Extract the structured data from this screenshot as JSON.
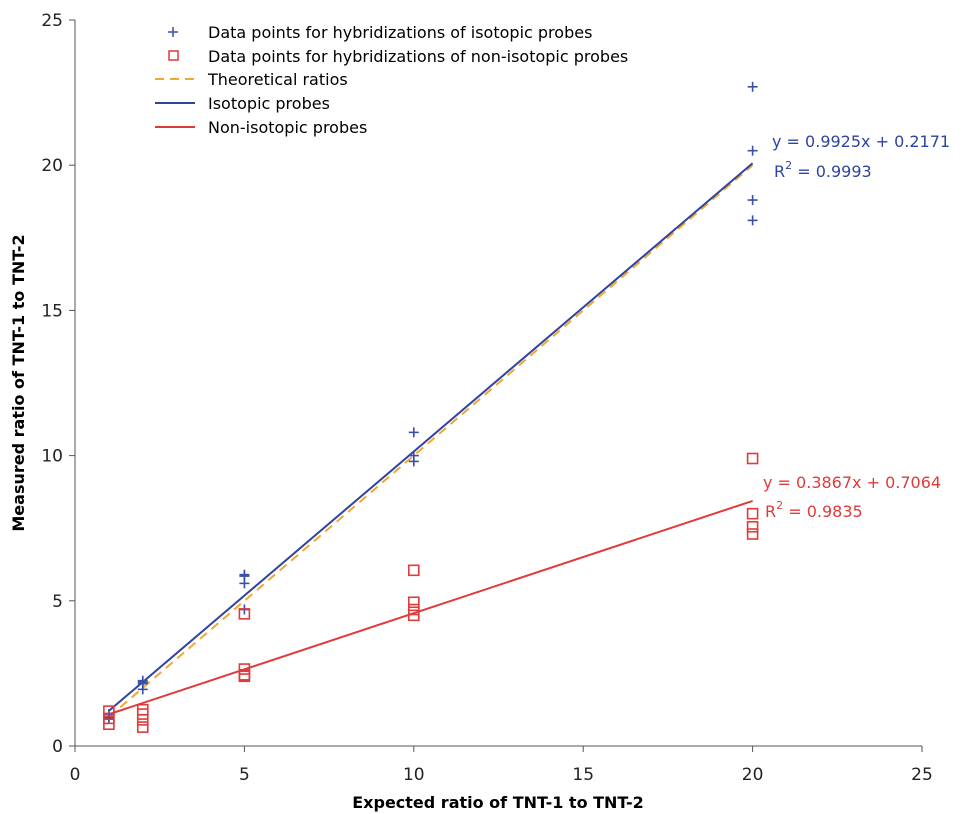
{
  "chart_data": {
    "type": "scatter",
    "xlabel": "Expected ratio of TNT-1 to TNT-2",
    "ylabel": "Measured ratio of TNT-1 to TNT-2",
    "xlim": [
      0,
      25
    ],
    "ylim": [
      0,
      25
    ],
    "xticks": [
      "0",
      "5",
      "10",
      "15",
      "20",
      "25"
    ],
    "yticks": [
      "0",
      "5",
      "10",
      "15",
      "20",
      "25"
    ],
    "grid": false,
    "legend_position": "top-left",
    "series": [
      {
        "name": "Data points for hybridizations of isotopic probes",
        "kind": "scatter",
        "marker": "plus",
        "color": "#3a4fa8",
        "points": [
          [
            1,
            1.0
          ],
          [
            1,
            0.95
          ],
          [
            1,
            1.1
          ],
          [
            2,
            2.2
          ],
          [
            2,
            2.25
          ],
          [
            2,
            2.15
          ],
          [
            2,
            1.95
          ],
          [
            5,
            5.9
          ],
          [
            5,
            5.85
          ],
          [
            5,
            5.6
          ],
          [
            5,
            4.7
          ],
          [
            10,
            10.8
          ],
          [
            10,
            10.0
          ],
          [
            10,
            9.8
          ],
          [
            20,
            22.7
          ],
          [
            20,
            20.5
          ],
          [
            20,
            18.8
          ],
          [
            20,
            18.1
          ]
        ]
      },
      {
        "name": "Data points for hybridizations of non-isotopic probes",
        "kind": "scatter",
        "marker": "square",
        "color": "#e03a3a",
        "points": [
          [
            1,
            1.2
          ],
          [
            1,
            0.95
          ],
          [
            1,
            0.75
          ],
          [
            2,
            1.25
          ],
          [
            2,
            1.1
          ],
          [
            2,
            0.9
          ],
          [
            2,
            0.65
          ],
          [
            5,
            4.55
          ],
          [
            5,
            2.65
          ],
          [
            5,
            2.45
          ],
          [
            5,
            2.4
          ],
          [
            10,
            6.05
          ],
          [
            10,
            4.95
          ],
          [
            10,
            4.7
          ],
          [
            10,
            4.5
          ],
          [
            20,
            9.9
          ],
          [
            20,
            8.0
          ],
          [
            20,
            7.55
          ],
          [
            20,
            7.3
          ]
        ]
      },
      {
        "name": "Theoretical ratios",
        "kind": "line",
        "style": "dashed",
        "color": "#f0a830",
        "points": [
          [
            1,
            1
          ],
          [
            20,
            20
          ]
        ]
      },
      {
        "name": "Isotopic probes",
        "kind": "line",
        "style": "solid",
        "color": "#2f43a0",
        "slope": 0.9925,
        "intercept": 0.2171,
        "x_range": [
          1,
          20
        ]
      },
      {
        "name": "Non-isotopic probes",
        "kind": "line",
        "style": "solid",
        "color": "#e03a3a",
        "slope": 0.3867,
        "intercept": 0.7064,
        "x_range": [
          1,
          20
        ]
      }
    ],
    "annotations": [
      {
        "id": "iso-eq",
        "equation": "y = 0.9925x + 0.2171",
        "r2_prefix": "R",
        "r2_sup": "2",
        "r2_value": " = 0.9993",
        "color": "#2f43a0"
      },
      {
        "id": "noniso-eq",
        "equation": "y = 0.3867x + 0.7064",
        "r2_prefix": "R",
        "r2_sup": "2",
        "r2_value": " = 0.9835",
        "color": "#e03a3a"
      }
    ]
  }
}
